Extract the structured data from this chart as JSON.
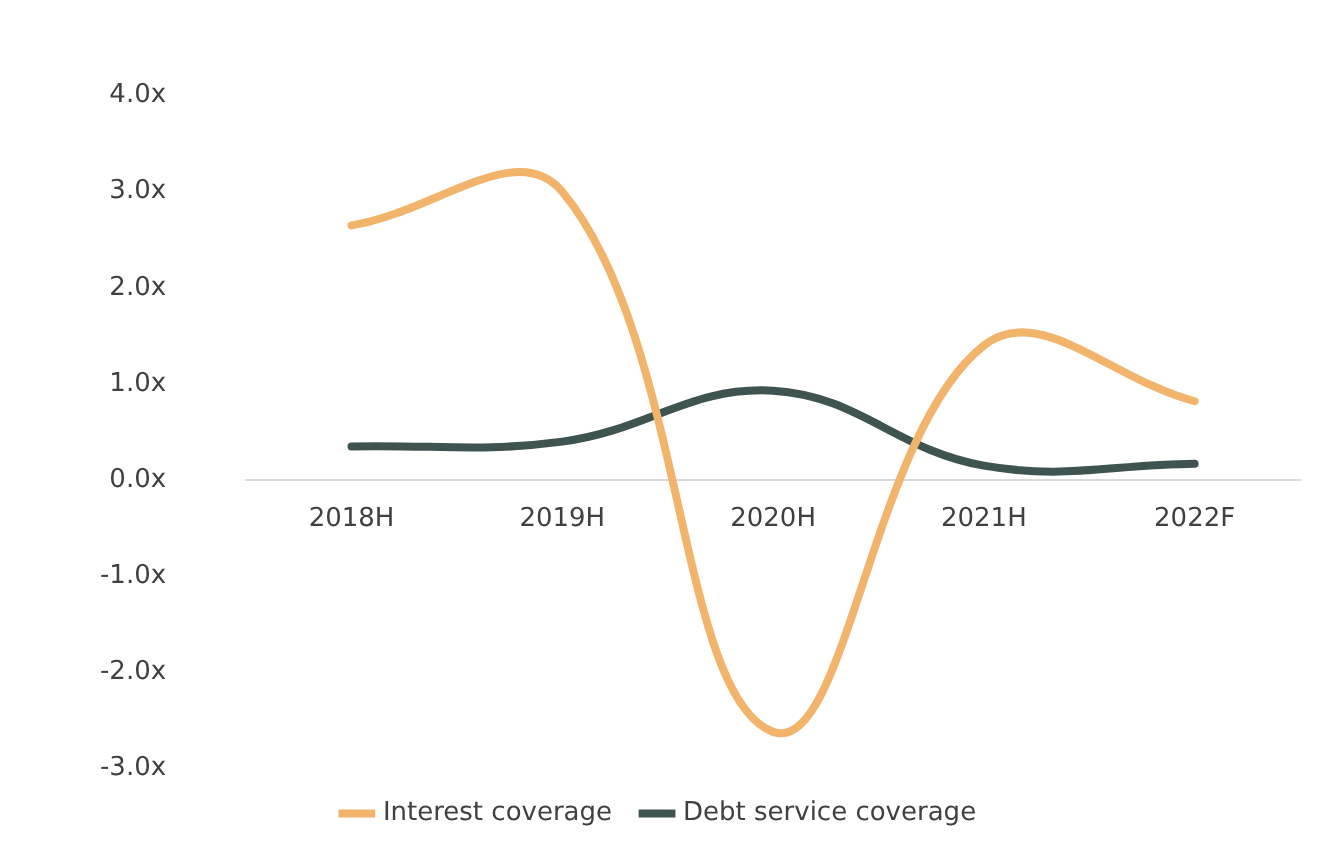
{
  "chart_data": {
    "type": "line",
    "categories": [
      "2018H",
      "2019H",
      "2020H",
      "2021H",
      "2022F"
    ],
    "series": [
      {
        "name": "Interest coverage",
        "color": "#f2b46a",
        "values": [
          2.65,
          3.0,
          -2.62,
          1.4,
          0.82
        ]
      },
      {
        "name": "Debt service coverage",
        "color": "#3f5350",
        "values": [
          0.35,
          0.4,
          0.93,
          0.15,
          0.17
        ]
      }
    ],
    "ylim": [
      -3,
      4
    ],
    "yticks": [
      {
        "value": -3,
        "label": "-3.0x"
      },
      {
        "value": -2,
        "label": "-2.0x"
      },
      {
        "value": -1,
        "label": "-1.0x"
      },
      {
        "value": 0,
        "label": "0.0x"
      },
      {
        "value": 1,
        "label": "1.0x"
      },
      {
        "value": 2,
        "label": "2.0x"
      },
      {
        "value": 3,
        "label": "3.0x"
      },
      {
        "value": 4,
        "label": "4.0x"
      }
    ],
    "grid": false,
    "legend": "bottom",
    "marker": "none"
  }
}
